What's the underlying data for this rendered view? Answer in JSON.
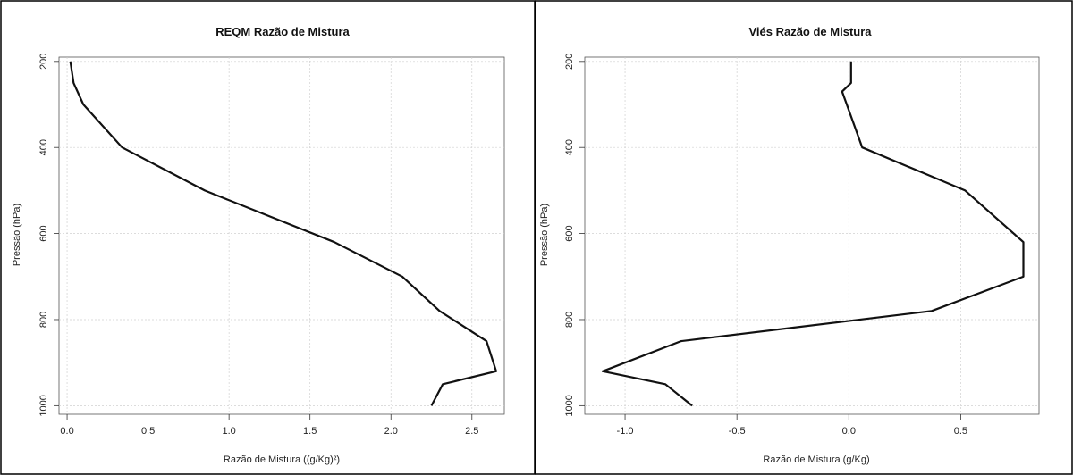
{
  "chart_data": [
    {
      "type": "line",
      "title": "REQM Razão de Mistura",
      "xlabel": "Razão de Mistura ((g/Kg)²)",
      "ylabel": "Pressão (hPa)",
      "xlim": [
        -0.05,
        2.7
      ],
      "ylim": [
        1020,
        190
      ],
      "y_reversed": true,
      "grid": true,
      "xticks": [
        0,
        0.5,
        1,
        1.5,
        2,
        2.5
      ],
      "xtick_labels": [
        "0.0",
        "0.5",
        "1.0",
        "1.5",
        "2.0",
        "2.5"
      ],
      "yticks": [
        200,
        400,
        600,
        800,
        1000
      ],
      "ytick_labels": [
        "200",
        "400",
        "600",
        "800",
        "1000"
      ],
      "series": [
        {
          "color": "#111111",
          "points": [
            {
              "x": 0.02,
              "y": 200
            },
            {
              "x": 0.04,
              "y": 250
            },
            {
              "x": 0.1,
              "y": 300
            },
            {
              "x": 0.34,
              "y": 400
            },
            {
              "x": 0.85,
              "y": 500
            },
            {
              "x": 1.65,
              "y": 620
            },
            {
              "x": 2.07,
              "y": 700
            },
            {
              "x": 2.3,
              "y": 780
            },
            {
              "x": 2.59,
              "y": 850
            },
            {
              "x": 2.65,
              "y": 920
            },
            {
              "x": 2.32,
              "y": 950
            },
            {
              "x": 2.25,
              "y": 1000
            }
          ]
        }
      ]
    },
    {
      "type": "line",
      "title": "Viés Razão de Mistura",
      "xlabel": "Razão de Mistura (g/Kg)",
      "ylabel": "Pressão (hPa)",
      "xlim": [
        -1.18,
        0.85
      ],
      "ylim": [
        1020,
        190
      ],
      "y_reversed": true,
      "grid": true,
      "xticks": [
        -1,
        -0.5,
        0,
        0.5
      ],
      "xtick_labels": [
        "-1.0",
        "-0.5",
        "0.0",
        "0.5"
      ],
      "yticks": [
        200,
        400,
        600,
        800,
        1000
      ],
      "ytick_labels": [
        "200",
        "400",
        "600",
        "800",
        "1000"
      ],
      "series": [
        {
          "color": "#111111",
          "points": [
            {
              "x": 0.01,
              "y": 200
            },
            {
              "x": 0.01,
              "y": 250
            },
            {
              "x": -0.03,
              "y": 270
            },
            {
              "x": 0.06,
              "y": 400
            },
            {
              "x": 0.52,
              "y": 500
            },
            {
              "x": 0.78,
              "y": 620
            },
            {
              "x": 0.78,
              "y": 700
            },
            {
              "x": 0.37,
              "y": 780
            },
            {
              "x": -0.75,
              "y": 850
            },
            {
              "x": -1.1,
              "y": 920
            },
            {
              "x": -0.82,
              "y": 950
            },
            {
              "x": -0.7,
              "y": 1000
            }
          ]
        }
      ]
    }
  ]
}
